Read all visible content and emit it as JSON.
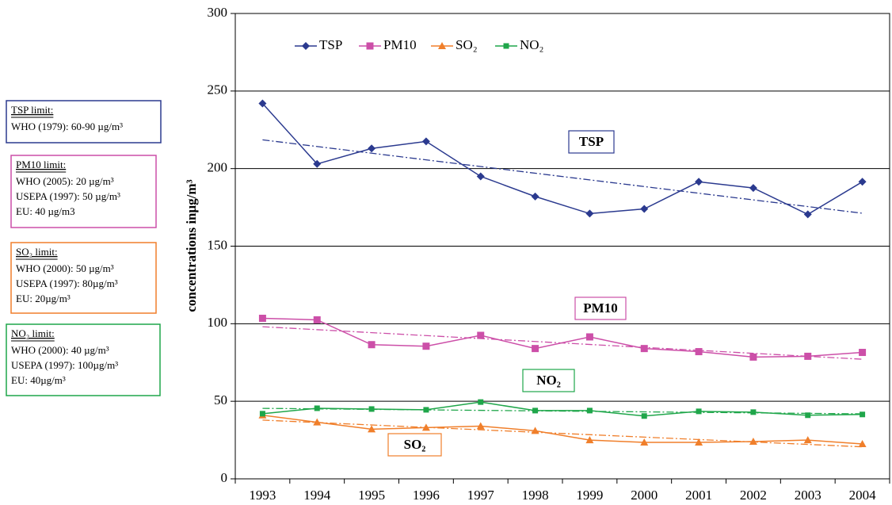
{
  "chart_data": {
    "type": "line",
    "ylabel": "concentrations inμg/m³",
    "categories": [
      "1993",
      "1994",
      "1995",
      "1996",
      "1997",
      "1998",
      "1999",
      "2000",
      "2001",
      "2002",
      "2003",
      "2004"
    ],
    "series": [
      {
        "name": "TSP",
        "color": "#2b3a8f",
        "values": [
          242,
          203,
          213,
          217.5,
          195,
          182,
          171,
          174,
          191.5,
          187.5,
          170.5,
          191.5
        ]
      },
      {
        "name": "PM10",
        "color": "#cc4fa8",
        "values": [
          103.5,
          102.5,
          86.5,
          85.5,
          92.5,
          84,
          91.5,
          84,
          82,
          78.5,
          79,
          81.5
        ]
      },
      {
        "name": "SO₂",
        "color": "#f07f2b",
        "values": [
          41,
          36.5,
          32,
          33,
          34,
          31,
          25,
          23.5,
          23.5,
          24,
          25,
          22.5
        ]
      },
      {
        "name": "NO₂",
        "color": "#1fa64a",
        "values": [
          42,
          45.5,
          45,
          44.5,
          49.5,
          44,
          44,
          40.5,
          43.5,
          43,
          41,
          41.5
        ]
      }
    ],
    "ylim": [
      0,
      300
    ],
    "yticks": [
      0,
      50,
      100,
      150,
      200,
      250,
      300
    ],
    "grid": true,
    "trendline": true,
    "annotations": [
      {
        "title": "TSP limit:",
        "color": "#2b3a8f",
        "lines": [
          "WHO (1979):  60-90 µg/m³"
        ]
      },
      {
        "title": "PM10 limit:",
        "color": "#cc4fa8",
        "lines": [
          "WHO (2005):  20 µg/m³",
          "USEPA (1997): 50 µg/m³",
          "EU: 40 µg/m3"
        ]
      },
      {
        "title": "SO₂ limit:",
        "color": "#f07f2b",
        "lines": [
          "WHO (2000):  50 µg/m³",
          "USEPA (1997): 80µg/m³",
          "EU: 20µg/m³"
        ]
      },
      {
        "title": "NO₂ limit:",
        "color": "#1fa64a",
        "lines": [
          "WHO (2000):  40 µg/m³",
          "USEPA (1997): 100µg/m³",
          "EU: 40µg/m³"
        ]
      }
    ]
  }
}
